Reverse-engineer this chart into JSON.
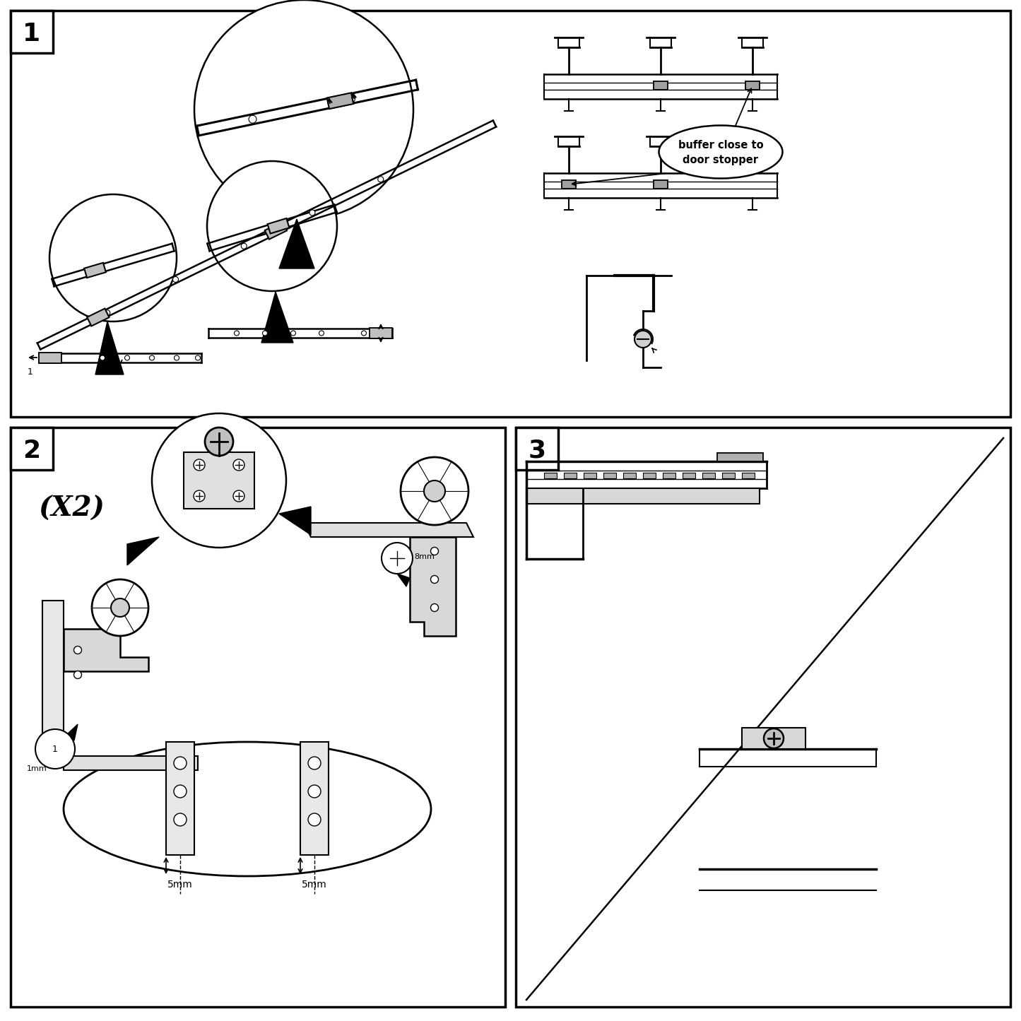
{
  "bg_color": "#ffffff",
  "line_color": "#000000",
  "panel1_label": "1",
  "panel2_label": "2",
  "panel3_label": "3",
  "label_x2": "(X2)",
  "label_buffer1": "buffer close to",
  "label_buffer2": "door stopper",
  "label_5mm": "5mm",
  "panel1_bounds": [
    15,
    15,
    1415,
    575
  ],
  "panel2_bounds": [
    15,
    605,
    700,
    820
  ],
  "panel3_bounds": [
    730,
    605,
    700,
    820
  ]
}
